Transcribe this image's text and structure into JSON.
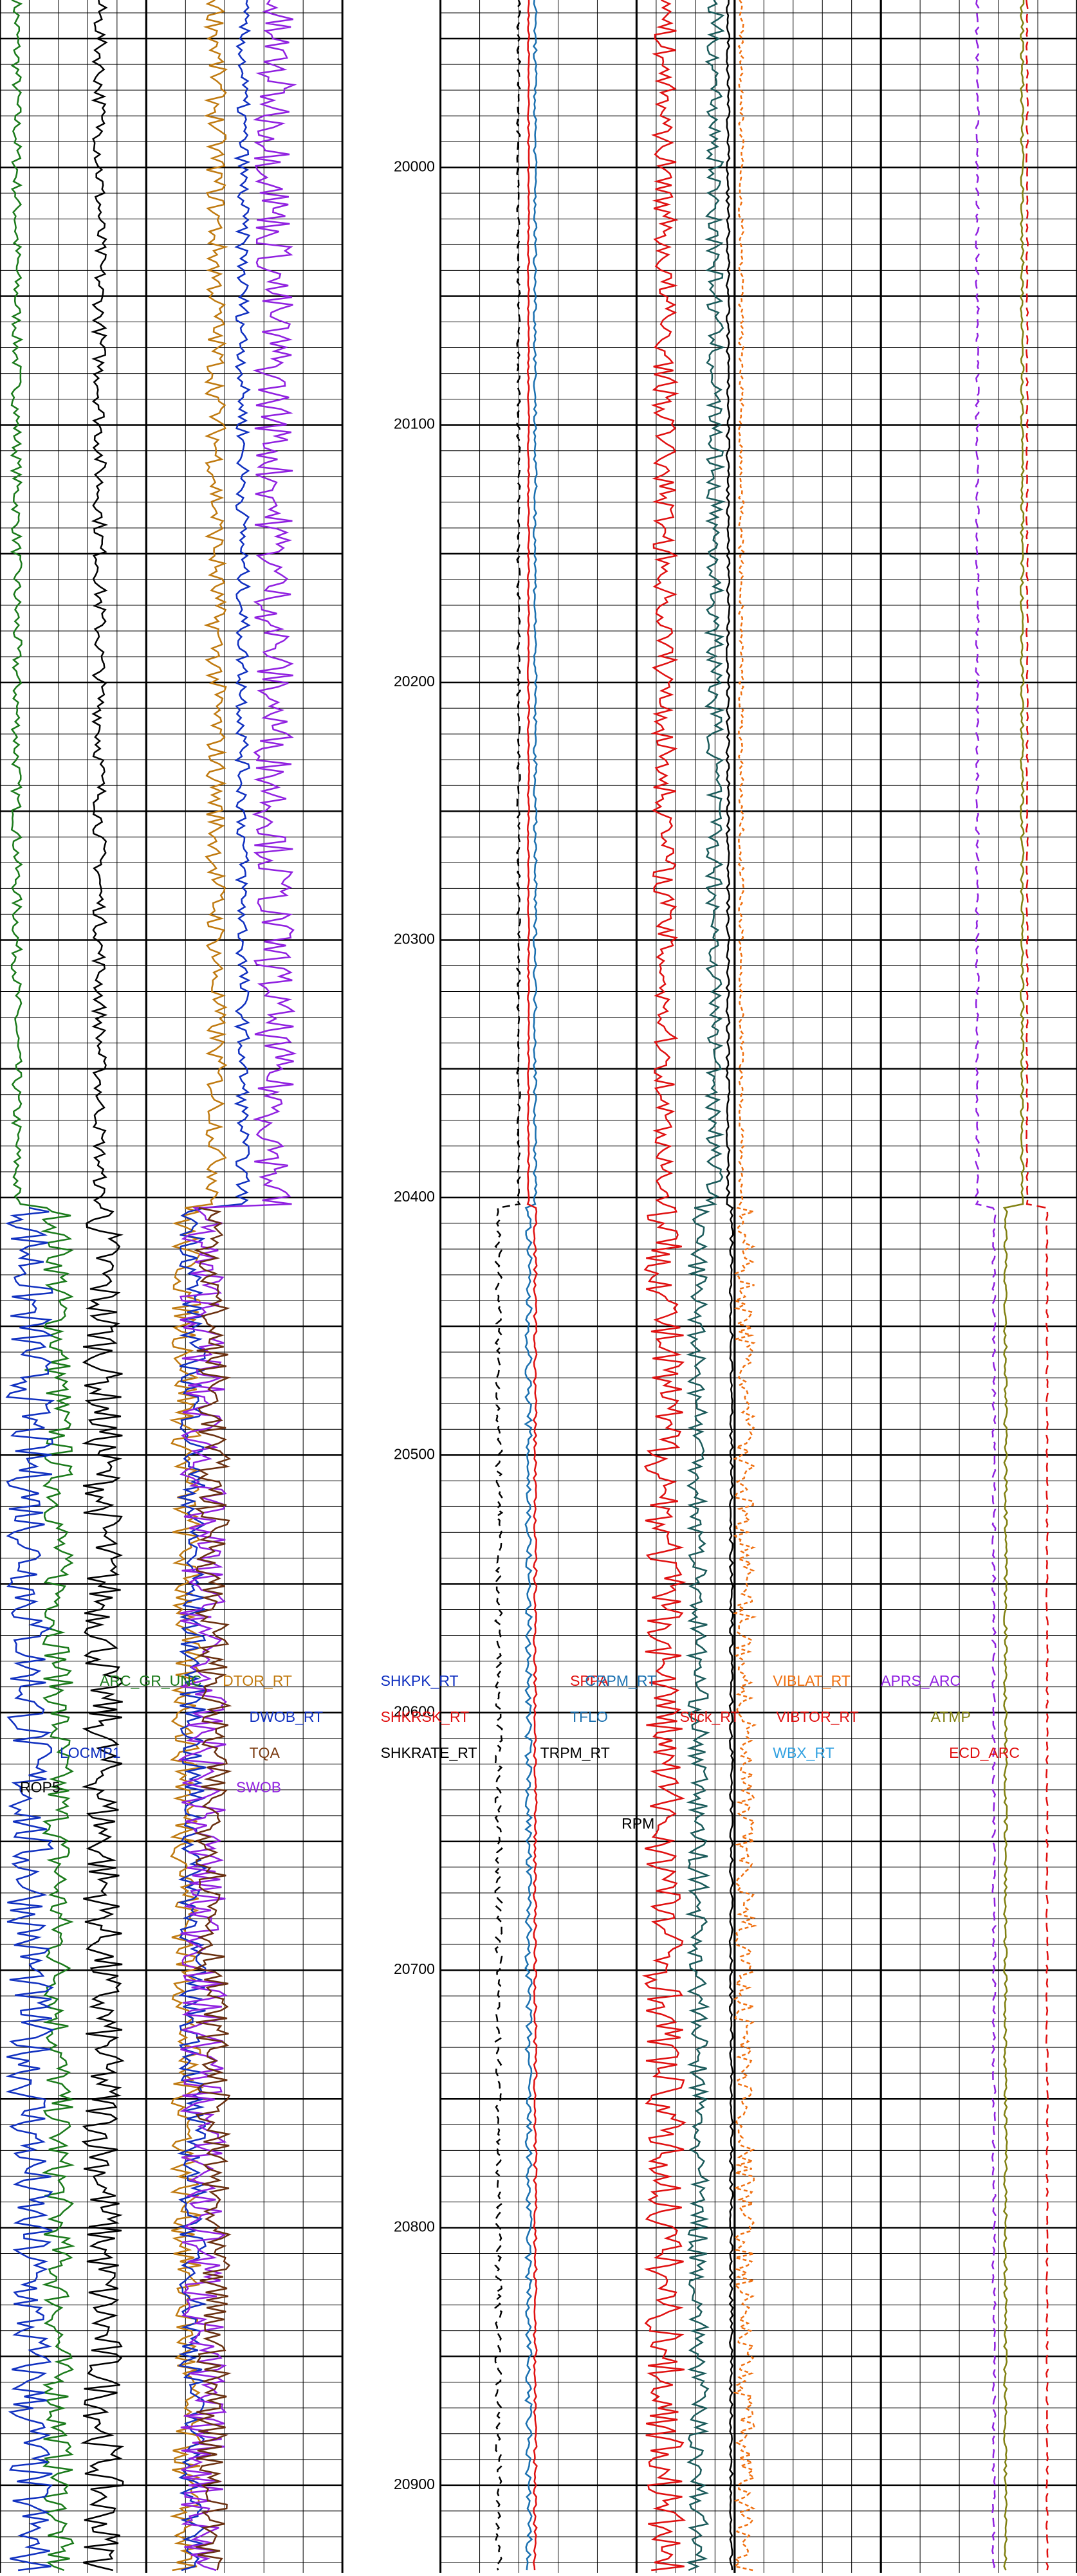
{
  "chart_data": {
    "type": "well-log",
    "ylim": [
      19935,
      20934
    ],
    "yticks": [
      20000,
      20100,
      20200,
      20300,
      20400,
      20500,
      20600,
      20700,
      20800,
      20900
    ],
    "grid": true,
    "curve_labels": [
      {
        "text": "ARC_GR_UNC",
        "color": "#1a7a1a"
      },
      {
        "text": "DTOR_RT",
        "color": "#c07a10"
      },
      {
        "text": "DWOB_RT",
        "color": "#1030c0"
      },
      {
        "text": "LOCMP1",
        "color": "#1030c0"
      },
      {
        "text": "TQA",
        "color": "#7a3a10"
      },
      {
        "text": "ROP5",
        "color": "#000000"
      },
      {
        "text": "SWOB",
        "color": "#9020e0"
      },
      {
        "text": "SHKPK_RT",
        "color": "#1030c0"
      },
      {
        "text": "SHKRSK_RT",
        "color": "#e01010"
      },
      {
        "text": "SHKRATE_RT",
        "color": "#000000"
      },
      {
        "text": "SPPA",
        "color": "#e01010"
      },
      {
        "text": "CRPM_RT",
        "color": "#1a70b0"
      },
      {
        "text": "TFLO",
        "color": "#1a70b0"
      },
      {
        "text": "TRPM_RT",
        "color": "#000000"
      },
      {
        "text": "RPM",
        "color": "#000000"
      },
      {
        "text": "Stick_RT",
        "color": "#e01010"
      },
      {
        "text": "VIBLAT_RT",
        "color": "#f07010"
      },
      {
        "text": "VIBTOR_RT",
        "color": "#e01010"
      },
      {
        "text": "WBX_RT",
        "color": "#30a0e0"
      },
      {
        "text": "APRS_ARC",
        "color": "#9020e0"
      },
      {
        "text": "ATMP",
        "color": "#808010"
      },
      {
        "text": "ECD_ARC",
        "color": "#e01010"
      }
    ]
  }
}
